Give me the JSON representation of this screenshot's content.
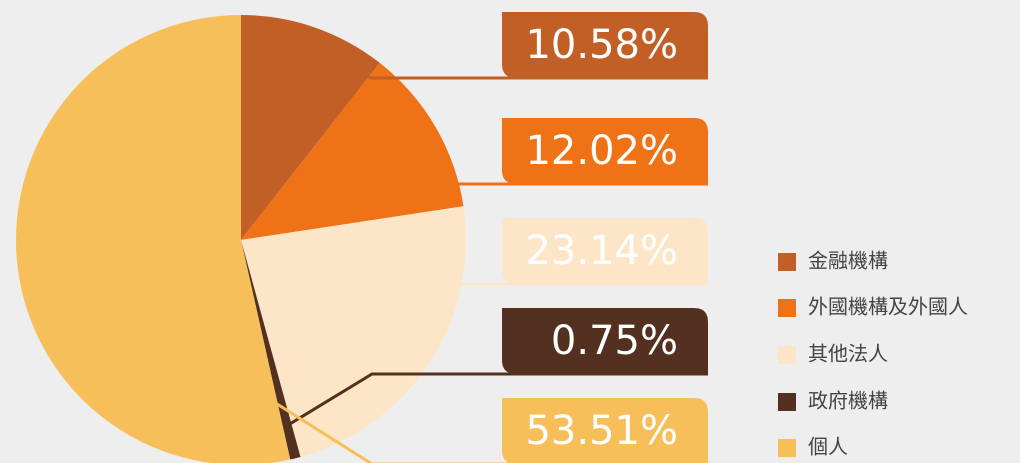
{
  "chart_data": {
    "type": "pie",
    "categories": [
      "金融機構",
      "外國機構及外國人",
      "其他法人",
      "政府機構",
      "個人"
    ],
    "values": [
      10.58,
      12.02,
      23.14,
      0.75,
      53.51
    ],
    "value_labels": [
      "10.58%",
      "12.02%",
      "23.14%",
      "0.75%",
      "53.51%"
    ],
    "colors": [
      "#c25f27",
      "#f07217",
      "#fde6c7",
      "#53301f",
      "#f7bf5a"
    ],
    "legend": "right"
  }
}
